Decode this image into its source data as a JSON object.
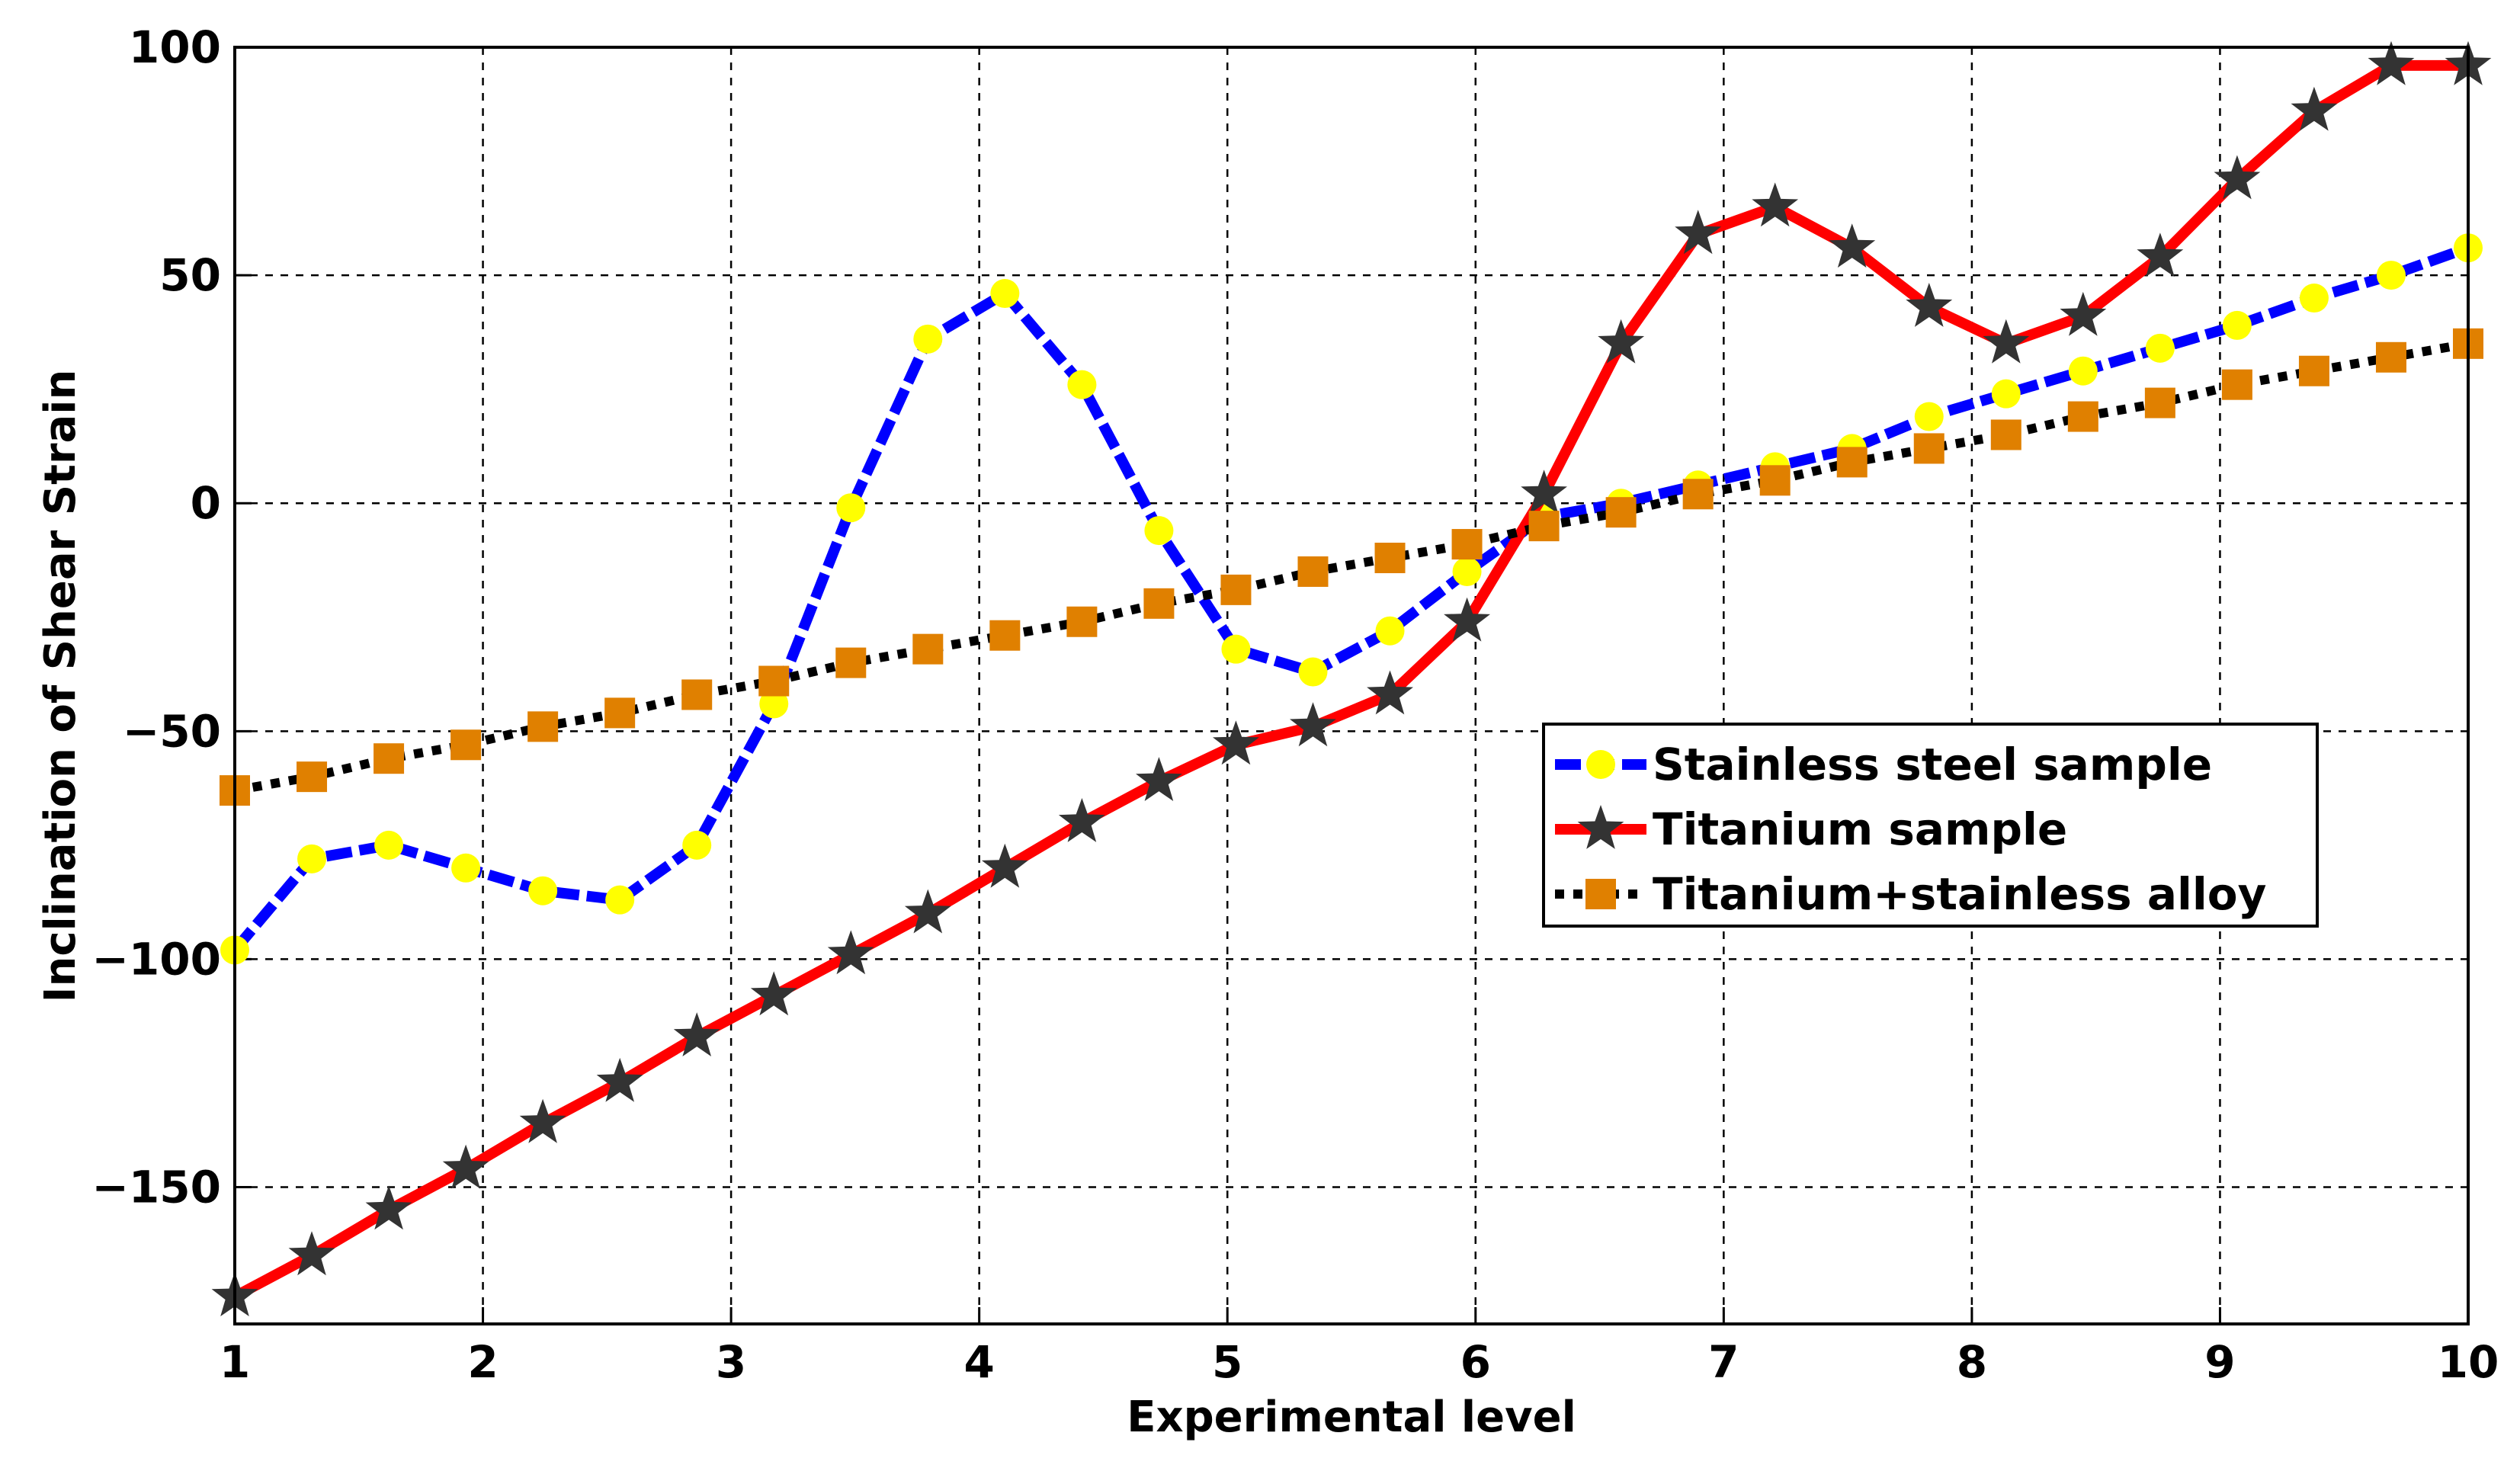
{
  "chart_data": {
    "type": "line",
    "title": "",
    "xlabel": "Experimental level",
    "ylabel": "Inclination of Shear Strain",
    "xlim": [
      1,
      10
    ],
    "ylim": [
      -180,
      100
    ],
    "xticks": [
      1,
      2,
      3,
      4,
      5,
      6,
      7,
      8,
      9,
      10
    ],
    "yticks": [
      -150,
      -100,
      -50,
      0,
      50,
      100
    ],
    "ytick_labels": [
      "−150",
      "−100",
      "−50",
      "0",
      "50",
      "100"
    ],
    "grid": true,
    "legend_position": "center-right",
    "x": [
      1,
      1.310344827586207,
      1.620689655172414,
      1.931034482758621,
      2.241379310344828,
      2.551724137931034,
      2.862068965517241,
      3.172413793103448,
      3.482758620689655,
      3.793103448275862,
      4.103448275862069,
      4.413793103448276,
      4.724137931034483,
      5.03448275862069,
      5.344827586206897,
      5.655172413793103,
      5.96551724137931,
      6.275862068965517,
      6.586206896551724,
      6.896551724137931,
      7.206896551724138,
      7.517241379310345,
      7.827586206896552,
      8.137931034482758,
      8.448275862068966,
      8.758620689655173,
      9.068965517241379,
      9.379310344827585,
      9.689655172413794,
      10
    ],
    "series": [
      {
        "name": "Stainless steel sample",
        "color": "#0000ff",
        "line_style": "dashed",
        "marker": "circle",
        "marker_color": "#ffff00",
        "values": [
          -98,
          -78,
          -75,
          -80,
          -85,
          -87,
          -75,
          -44,
          -1,
          36,
          46,
          26,
          -6,
          -32,
          -37,
          -28,
          -15,
          -3,
          0,
          4,
          8,
          12,
          19,
          24,
          29,
          34,
          39,
          45,
          50,
          56
        ]
      },
      {
        "name": "Titanium sample",
        "color": "#ff0000",
        "line_style": "solid",
        "marker": "star",
        "marker_color": "#333333",
        "values": [
          -174,
          -165,
          -155,
          -146,
          -136,
          -127,
          -117,
          -108,
          -99,
          -90,
          -80,
          -70,
          -61,
          -53,
          -49,
          -42,
          -26,
          2,
          35,
          59,
          65,
          56,
          43,
          35,
          41,
          54,
          71,
          86,
          96,
          96
        ]
      },
      {
        "name": "Titanium+stainless alloy",
        "color": "#000000",
        "line_style": "dotted",
        "marker": "square",
        "marker_color": "#e08000",
        "values": [
          -63,
          -60,
          -56,
          -53,
          -49,
          -46,
          -42,
          -39,
          -35,
          -32,
          -29,
          -26,
          -22,
          -19,
          -15,
          -12,
          -9,
          -5,
          -2,
          2,
          5,
          9,
          12,
          15,
          19,
          22,
          26,
          29,
          32,
          35
        ]
      }
    ]
  }
}
